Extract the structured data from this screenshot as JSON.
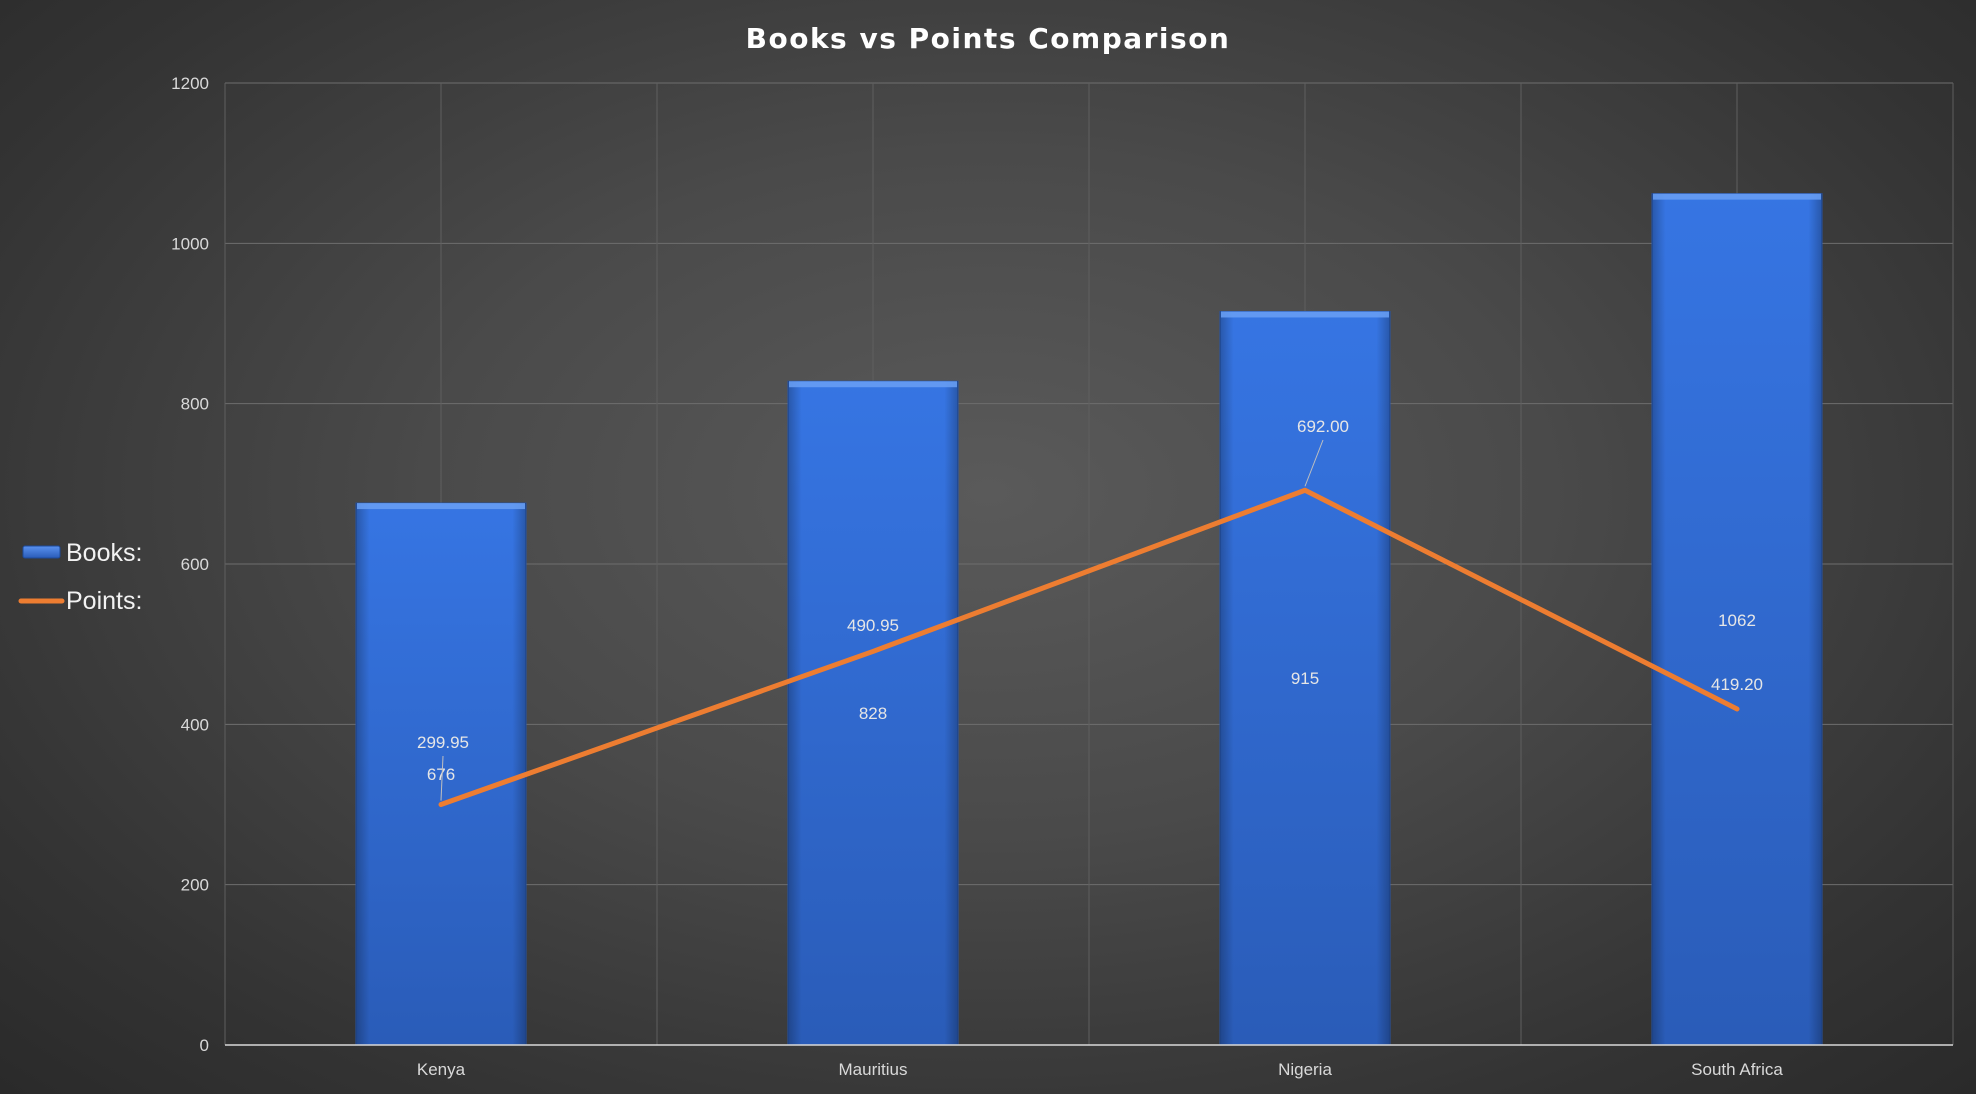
{
  "chart_data": {
    "type": "bar",
    "title": "Books vs Points Comparison",
    "categories": [
      "Kenya",
      "Mauritius",
      "Nigeria",
      "South Africa"
    ],
    "ylim": [
      0,
      1200
    ],
    "yticks": [
      0,
      200,
      400,
      600,
      800,
      1000,
      1200
    ],
    "grid": true,
    "legend_position": "left",
    "series": [
      {
        "name": "Books:",
        "type": "bar",
        "color": "#3370d9",
        "values": [
          676,
          828,
          915,
          1062
        ],
        "labels": [
          "676",
          "828",
          "915",
          "1062"
        ]
      },
      {
        "name": "Points:",
        "type": "line",
        "color": "#ed7d31",
        "values": [
          299.95,
          490.95,
          692.0,
          419.2
        ],
        "labels": [
          "299.95",
          "490.95",
          "692.00",
          "419.20"
        ]
      }
    ]
  }
}
